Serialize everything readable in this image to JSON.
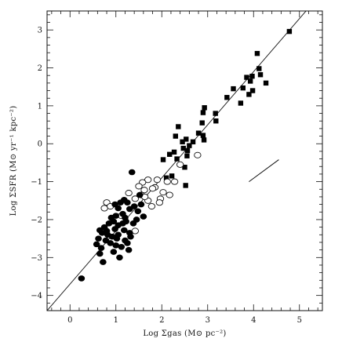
{
  "chart_data": {
    "type": "scatter",
    "title": "",
    "xlabel": "Log Σgas   (M⊙ pc⁻²)",
    "ylabel": "Log ΣSFR  (M⊙ yr⁻¹ kpc⁻²)",
    "xlim": [
      -0.5,
      5.5
    ],
    "ylim": [
      -4.4,
      3.5
    ],
    "xticks": [
      0,
      1,
      2,
      3,
      4,
      5
    ],
    "yticks": [
      -4,
      -3,
      -2,
      -1,
      0,
      1,
      2,
      3
    ],
    "grid": false,
    "legend": "none",
    "fit_line": {
      "slope": 1.4,
      "intercept": -3.7,
      "x_range": [
        -0.5,
        5.5
      ]
    },
    "slope_marker": {
      "x": [
        3.9,
        4.55
      ],
      "y": [
        -1.0,
        -0.42
      ]
    },
    "series": [
      {
        "marker": "filled-square",
        "points": [
          [
            4.78,
            2.96
          ],
          [
            4.08,
            2.38
          ],
          [
            4.12,
            1.98
          ],
          [
            4.15,
            1.82
          ],
          [
            4.27,
            1.6
          ],
          [
            3.97,
            1.78
          ],
          [
            3.85,
            1.75
          ],
          [
            3.93,
            1.65
          ],
          [
            3.77,
            1.47
          ],
          [
            3.98,
            1.4
          ],
          [
            3.56,
            1.45
          ],
          [
            3.72,
            1.07
          ],
          [
            3.42,
            1.22
          ],
          [
            3.9,
            1.3
          ],
          [
            2.93,
            0.95
          ],
          [
            3.17,
            0.8
          ],
          [
            2.9,
            0.82
          ],
          [
            3.18,
            0.6
          ],
          [
            2.88,
            0.55
          ],
          [
            2.9,
            0.22
          ],
          [
            2.8,
            0.28
          ],
          [
            2.53,
            0.12
          ],
          [
            2.92,
            0.1
          ],
          [
            2.68,
            0.05
          ],
          [
            2.45,
            0.05
          ],
          [
            2.6,
            -0.05
          ],
          [
            2.36,
            0.45
          ],
          [
            2.47,
            -0.12
          ],
          [
            2.3,
            0.2
          ],
          [
            2.56,
            -0.18
          ],
          [
            2.55,
            -0.32
          ],
          [
            2.27,
            -0.22
          ],
          [
            2.33,
            -0.4
          ],
          [
            2.17,
            -0.28
          ],
          [
            2.03,
            -0.42
          ],
          [
            2.5,
            -0.62
          ],
          [
            2.22,
            -0.85
          ],
          [
            2.52,
            -1.1
          ],
          [
            2.1,
            -0.9
          ]
        ]
      },
      {
        "marker": "open-circle",
        "points": [
          [
            2.78,
            -0.3
          ],
          [
            2.4,
            -0.55
          ],
          [
            2.28,
            -1.0
          ],
          [
            2.17,
            -1.35
          ],
          [
            2.12,
            -1.0
          ],
          [
            2.03,
            -1.28
          ],
          [
            1.97,
            -1.45
          ],
          [
            1.85,
            -1.15
          ],
          [
            1.9,
            -0.95
          ],
          [
            1.7,
            -0.95
          ],
          [
            1.58,
            -1.02
          ],
          [
            1.5,
            -1.12
          ],
          [
            1.62,
            -1.22
          ],
          [
            1.55,
            -1.35
          ],
          [
            1.7,
            -1.5
          ],
          [
            1.42,
            -1.45
          ],
          [
            1.78,
            -1.65
          ],
          [
            1.95,
            -1.55
          ],
          [
            1.28,
            -1.3
          ],
          [
            1.12,
            -1.9
          ],
          [
            0.8,
            -1.55
          ],
          [
            0.75,
            -1.7
          ],
          [
            0.88,
            -1.65
          ],
          [
            1.42,
            -2.3
          ],
          [
            1.8,
            -1.18
          ],
          [
            1.63,
            -1.4
          ]
        ]
      },
      {
        "marker": "filled-circle",
        "points": [
          [
            1.35,
            -0.75
          ],
          [
            1.52,
            -1.35
          ],
          [
            1.1,
            -1.55
          ],
          [
            1.18,
            -1.48
          ],
          [
            1.25,
            -1.55
          ],
          [
            0.98,
            -1.6
          ],
          [
            1.05,
            -1.7
          ],
          [
            1.15,
            -1.85
          ],
          [
            1.3,
            -1.72
          ],
          [
            1.4,
            -1.65
          ],
          [
            1.48,
            -1.78
          ],
          [
            1.55,
            -1.6
          ],
          [
            1.6,
            -1.92
          ],
          [
            1.2,
            -1.95
          ],
          [
            1.0,
            -1.9
          ],
          [
            0.9,
            -1.95
          ],
          [
            1.22,
            -2.05
          ],
          [
            1.38,
            -2.1
          ],
          [
            1.05,
            -2.15
          ],
          [
            0.85,
            -2.1
          ],
          [
            0.75,
            -2.2
          ],
          [
            0.98,
            -2.25
          ],
          [
            1.18,
            -2.28
          ],
          [
            1.3,
            -2.35
          ],
          [
            0.7,
            -2.35
          ],
          [
            0.65,
            -2.28
          ],
          [
            0.82,
            -2.4
          ],
          [
            0.92,
            -2.45
          ],
          [
            1.02,
            -2.5
          ],
          [
            1.2,
            -2.55
          ],
          [
            1.32,
            -2.45
          ],
          [
            0.78,
            -2.55
          ],
          [
            0.62,
            -2.5
          ],
          [
            0.88,
            -2.62
          ],
          [
            1.0,
            -2.68
          ],
          [
            1.12,
            -2.72
          ],
          [
            1.28,
            -2.8
          ],
          [
            0.95,
            -2.85
          ],
          [
            1.08,
            -3.0
          ],
          [
            0.68,
            -2.75
          ],
          [
            0.65,
            -2.9
          ],
          [
            0.72,
            -3.12
          ],
          [
            1.05,
            -2.4
          ],
          [
            0.58,
            -2.65
          ],
          [
            0.25,
            -3.55
          ],
          [
            1.45,
            -2.0
          ],
          [
            1.25,
            -2.62
          ],
          [
            0.8,
            -2.3
          ],
          [
            1.15,
            -2.1
          ],
          [
            0.95,
            -2.05
          ]
        ]
      }
    ]
  }
}
